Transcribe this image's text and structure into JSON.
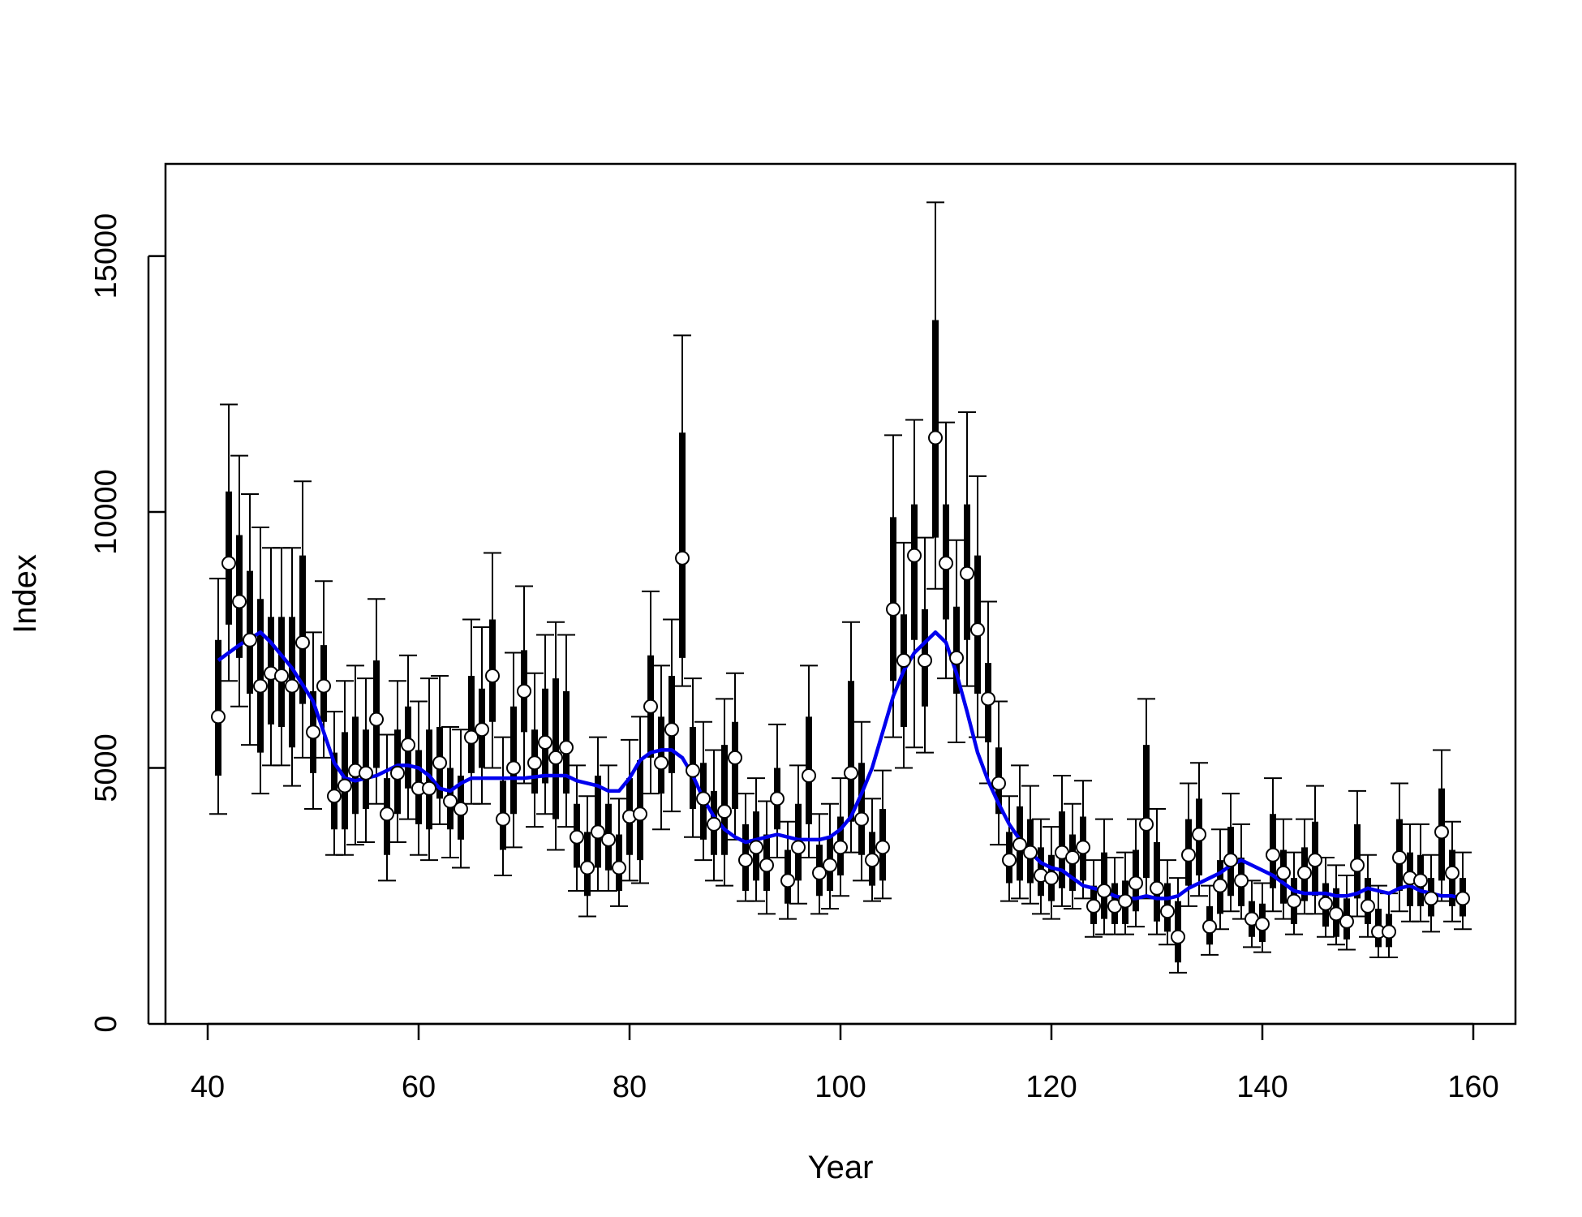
{
  "chart_data": {
    "type": "scatter",
    "xlabel": "Year",
    "ylabel": "Index",
    "xlim": [
      36,
      164
    ],
    "ylim": [
      0,
      16800
    ],
    "x_ticks": [
      40,
      60,
      80,
      100,
      120,
      140,
      160
    ],
    "y_ticks": [
      0,
      5000,
      10000,
      15000
    ],
    "grid": false,
    "colors": {
      "points": "#000000",
      "smooth": "#0000ee",
      "point_fill": "#ffffff"
    },
    "series": [
      {
        "x": [
          41,
          42,
          43,
          44,
          45,
          46,
          47,
          48,
          49,
          50,
          51,
          52,
          53,
          54,
          55,
          56,
          57,
          58,
          59,
          60,
          61,
          62,
          63,
          64,
          65,
          66,
          67,
          68,
          69,
          70,
          71,
          72,
          73,
          74,
          75,
          76,
          77,
          78,
          79,
          80,
          81,
          82,
          83,
          84,
          85,
          86,
          87,
          88,
          89,
          90,
          91,
          92,
          93,
          94,
          95,
          96,
          97,
          98,
          99,
          100,
          101,
          102,
          103,
          104,
          105,
          106,
          107,
          108,
          109,
          110,
          111,
          112,
          113,
          114,
          115,
          116,
          117,
          118,
          119,
          120,
          121,
          122,
          123,
          124,
          125,
          126,
          127,
          128,
          129,
          130,
          131,
          132,
          133,
          134,
          135,
          136,
          137,
          138,
          139,
          140,
          141,
          142,
          143,
          144,
          145,
          146,
          147,
          148,
          149,
          150,
          151,
          152,
          153,
          154,
          155,
          156,
          157,
          158,
          159
        ],
        "point": [
          6000,
          9000,
          8250,
          7500,
          6600,
          6850,
          6800,
          6600,
          7450,
          5700,
          6600,
          4450,
          4650,
          4950,
          4900,
          5950,
          4100,
          4900,
          5450,
          4600,
          4600,
          5100,
          4350,
          4200,
          5600,
          5750,
          6800,
          4000,
          5000,
          6500,
          5100,
          5500,
          5200,
          5400,
          3650,
          3050,
          3750,
          3600,
          3050,
          4050,
          4100,
          6200,
          5100,
          5750,
          9100,
          4950,
          4400,
          3900,
          4150,
          5200,
          3200,
          3450,
          3100,
          4400,
          2800,
          3450,
          4850,
          2950,
          3100,
          3450,
          4900,
          4000,
          3200,
          3450,
          8100,
          7100,
          9150,
          7100,
          11450,
          9000,
          7150,
          8800,
          7700,
          6350,
          4700,
          3200,
          3500,
          3350,
          2900,
          2850,
          3350,
          3250,
          3450,
          2300,
          2600,
          2300,
          2400,
          2750,
          3900,
          2650,
          2200,
          1700,
          3300,
          3700,
          1900,
          2700,
          3200,
          2800,
          2050,
          1950,
          3300,
          2950,
          2400,
          2950,
          3200,
          2350,
          2150,
          2000,
          3100,
          2300,
          1800,
          1800,
          3250,
          2850,
          2800,
          2450,
          3750,
          2950,
          2450
        ],
        "box_low": [
          4850,
          7800,
          7150,
          6450,
          5300,
          5850,
          5800,
          5400,
          6250,
          4900,
          5900,
          3800,
          3800,
          4100,
          4200,
          5000,
          3300,
          4100,
          4600,
          3900,
          3800,
          4400,
          3800,
          3600,
          4900,
          5000,
          5900,
          3400,
          4100,
          5700,
          4500,
          4700,
          4000,
          4500,
          3050,
          2500,
          3050,
          3000,
          2600,
          3300,
          3200,
          5200,
          4500,
          4900,
          7150,
          4200,
          3600,
          3300,
          3300,
          4200,
          2600,
          2800,
          2600,
          3800,
          2350,
          2800,
          3900,
          2500,
          2600,
          2900,
          3950,
          3300,
          2700,
          2800,
          6700,
          5800,
          7500,
          6200,
          9500,
          7900,
          6450,
          7500,
          6450,
          5500,
          4100,
          2750,
          2800,
          2750,
          2500,
          2400,
          2650,
          2600,
          2800,
          1950,
          2050,
          1950,
          1950,
          2200,
          2850,
          2000,
          1800,
          1200,
          2700,
          2900,
          1550,
          2150,
          2500,
          2300,
          1700,
          1600,
          2650,
          2350,
          1950,
          2400,
          2500,
          1900,
          1700,
          1650,
          2450,
          1950,
          1500,
          1500,
          2600,
          2300,
          2300,
          2100,
          2800,
          2300,
          2100
        ],
        "box_high": [
          7500,
          10400,
          9550,
          8850,
          8300,
          7950,
          7950,
          7950,
          9150,
          6500,
          7400,
          5300,
          5700,
          6000,
          5750,
          7100,
          4800,
          5750,
          6200,
          5350,
          5750,
          5800,
          5000,
          4850,
          6800,
          6550,
          7900,
          4750,
          6200,
          7300,
          5750,
          6550,
          6750,
          6500,
          4300,
          3750,
          4850,
          4300,
          3700,
          4800,
          5150,
          7200,
          6000,
          6800,
          11550,
          5800,
          5100,
          4550,
          5450,
          5900,
          3900,
          4150,
          3700,
          5000,
          3400,
          4300,
          6000,
          3500,
          3650,
          4050,
          6700,
          5100,
          3750,
          4200,
          9900,
          8000,
          10150,
          8100,
          13750,
          10150,
          8150,
          10150,
          9150,
          7050,
          5400,
          3750,
          4250,
          4000,
          3450,
          3300,
          4150,
          3700,
          4050,
          2700,
          3350,
          2750,
          2800,
          3400,
          5450,
          3550,
          2750,
          2400,
          4000,
          4400,
          2300,
          3200,
          3850,
          3250,
          2400,
          2350,
          4100,
          3400,
          2850,
          3450,
          3950,
          2750,
          2650,
          2450,
          3900,
          2850,
          2250,
          2150,
          4000,
          3350,
          3300,
          2850,
          4600,
          3400,
          2850
        ],
        "ci_low": [
          4100,
          6700,
          6200,
          5450,
          4500,
          5050,
          5050,
          4650,
          5200,
          4200,
          5200,
          3300,
          3300,
          3500,
          3550,
          4300,
          2800,
          3550,
          4000,
          3300,
          3200,
          3900,
          3250,
          3050,
          4300,
          4300,
          5000,
          2900,
          3450,
          4700,
          3850,
          4100,
          3400,
          3850,
          2600,
          2100,
          2600,
          2600,
          2300,
          2800,
          2750,
          4500,
          3800,
          4150,
          6600,
          3650,
          3200,
          2800,
          2700,
          3600,
          2400,
          2400,
          2150,
          3250,
          2050,
          2350,
          3250,
          2150,
          2250,
          2500,
          3350,
          2800,
          2400,
          2450,
          5600,
          5000,
          5400,
          5300,
          8500,
          6750,
          5500,
          6600,
          5600,
          4700,
          3500,
          2400,
          2450,
          2350,
          2150,
          2050,
          2300,
          2250,
          2450,
          1700,
          1750,
          1750,
          1750,
          1900,
          2450,
          1750,
          1550,
          1000,
          2300,
          2500,
          1350,
          1850,
          2200,
          2050,
          1500,
          1400,
          2200,
          2050,
          1750,
          2150,
          2150,
          1700,
          1550,
          1450,
          2100,
          1700,
          1300,
          1300,
          2200,
          2000,
          2000,
          1800,
          2400,
          2000,
          1850
        ],
        "ci_high": [
          8700,
          12100,
          11100,
          10350,
          9700,
          9300,
          9300,
          9300,
          10600,
          7650,
          8650,
          6100,
          6700,
          7000,
          6750,
          8300,
          5650,
          6700,
          7200,
          6300,
          6750,
          6800,
          5800,
          5750,
          7900,
          7750,
          9200,
          5600,
          7250,
          8550,
          6850,
          7600,
          7850,
          7600,
          5050,
          4450,
          5600,
          5050,
          4400,
          5550,
          6000,
          8450,
          7000,
          7900,
          13450,
          6750,
          5900,
          5350,
          6350,
          6850,
          4500,
          4800,
          4350,
          5850,
          3950,
          5050,
          7000,
          4100,
          4300,
          4800,
          7850,
          5900,
          4400,
          4950,
          11500,
          9400,
          11800,
          9500,
          16050,
          11750,
          9450,
          11950,
          10700,
          8250,
          6300,
          4450,
          5050,
          4650,
          4000,
          3850,
          4850,
          4300,
          4750,
          3200,
          4000,
          3250,
          3350,
          4000,
          6350,
          4200,
          3200,
          2850,
          4700,
          5100,
          2700,
          3800,
          4500,
          3900,
          2800,
          2750,
          4800,
          4000,
          3350,
          4000,
          4650,
          3250,
          3100,
          2900,
          4550,
          3300,
          2700,
          2550,
          4700,
          3900,
          3900,
          3300,
          5350,
          3950,
          3350
        ]
      },
      {
        "x": [
          41,
          43,
          45,
          46,
          48,
          50,
          51,
          52,
          53,
          54,
          56,
          58,
          59,
          60,
          61,
          62,
          63,
          64,
          65,
          66,
          68,
          70,
          72,
          74,
          75,
          77,
          78,
          79,
          80,
          81,
          82,
          83,
          84,
          85,
          86,
          87,
          88,
          89,
          90,
          91,
          92,
          93,
          94,
          95,
          96,
          97,
          98,
          99,
          100,
          101,
          102,
          103,
          104,
          105,
          106,
          107,
          108,
          109,
          110,
          111,
          112,
          113,
          114,
          115,
          116,
          117,
          118,
          119,
          120,
          121,
          122,
          123,
          124,
          125,
          126,
          127,
          128,
          129,
          130,
          131,
          132,
          133,
          134,
          135,
          136,
          137,
          138,
          139,
          140,
          141,
          142,
          143,
          144,
          145,
          146,
          147,
          148,
          149,
          150,
          151,
          152,
          153,
          154,
          155,
          156,
          157,
          158,
          159
        ],
        "smooth": [
          7100,
          7400,
          7650,
          7450,
          6950,
          6300,
          5700,
          5100,
          4800,
          4750,
          4850,
          5050,
          5050,
          5000,
          4850,
          4600,
          4550,
          4700,
          4800,
          4800,
          4800,
          4800,
          4850,
          4850,
          4750,
          4650,
          4550,
          4550,
          4800,
          5150,
          5300,
          5350,
          5350,
          5200,
          4850,
          4400,
          4050,
          3800,
          3650,
          3550,
          3600,
          3650,
          3700,
          3650,
          3600,
          3600,
          3600,
          3650,
          3800,
          4050,
          4500,
          5000,
          5700,
          6400,
          6900,
          7250,
          7450,
          7650,
          7450,
          6850,
          6100,
          5300,
          4750,
          4300,
          3900,
          3600,
          3350,
          3150,
          3050,
          3000,
          2850,
          2700,
          2650,
          2600,
          2500,
          2450,
          2450,
          2500,
          2450,
          2450,
          2500,
          2650,
          2750,
          2850,
          2950,
          3100,
          3200,
          3100,
          3000,
          2900,
          2750,
          2600,
          2550,
          2550,
          2550,
          2500,
          2500,
          2550,
          2650,
          2600,
          2550,
          2650,
          2700,
          2600,
          2550,
          2500,
          2500,
          2450,
          2350
        ]
      }
    ]
  }
}
